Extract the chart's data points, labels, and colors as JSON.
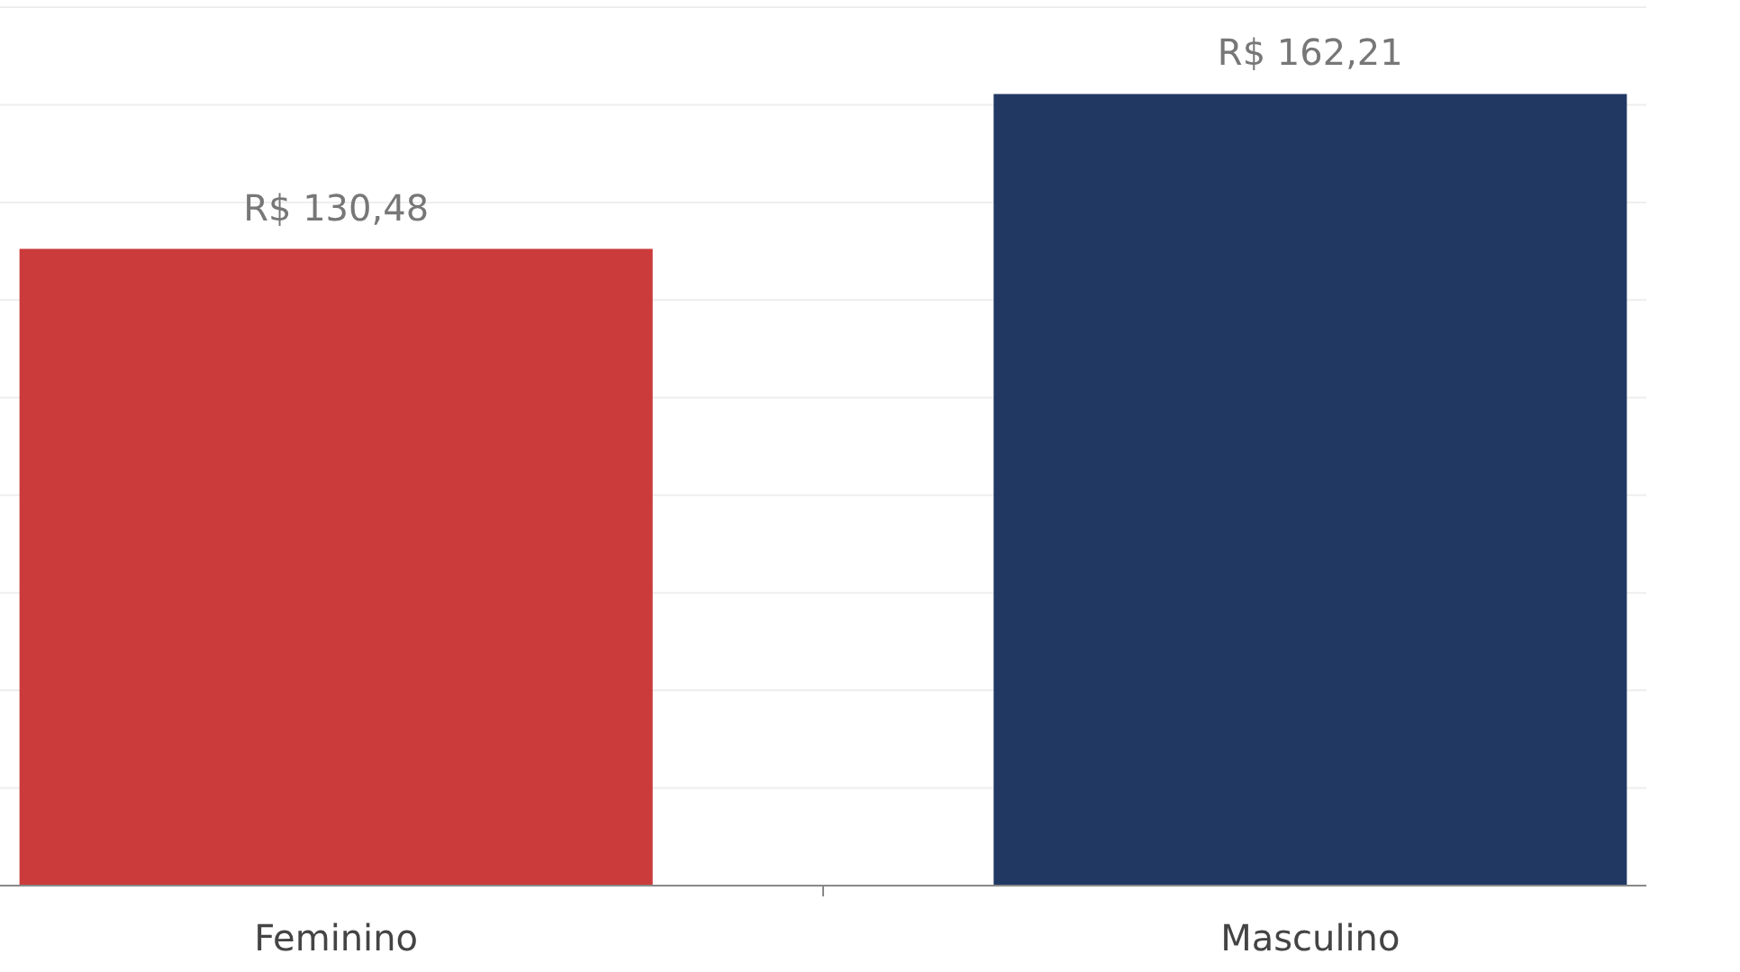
{
  "chart_data": {
    "type": "bar",
    "categories": [
      "Feminino",
      "Masculino"
    ],
    "values": [
      130.48,
      162.21
    ],
    "colors": [
      "#cb3b3b",
      "#213863"
    ],
    "value_labels": [
      "R$ 130,48",
      "R$ 162,21"
    ],
    "ylim": [
      0,
      180
    ],
    "yticks": [
      {
        "value": 0,
        "label": null
      },
      {
        "value": 20,
        "label": null
      },
      {
        "value": 40,
        "label": null
      },
      {
        "value": 60,
        "label": null
      },
      {
        "value": 80,
        "label": null
      },
      {
        "value": 100,
        "label": null
      },
      {
        "value": 120,
        "label": null
      },
      {
        "value": 140,
        "label": null
      },
      {
        "value": 160,
        "label": null
      },
      {
        "value": 180,
        "label": null
      }
    ],
    "grid": "y",
    "tick_labels": "x"
  }
}
